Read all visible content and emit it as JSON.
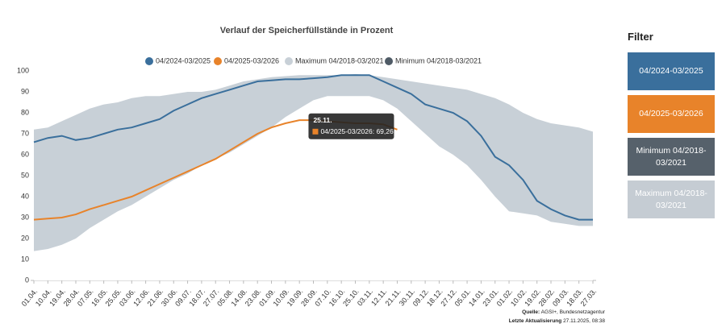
{
  "chart_data": {
    "type": "line",
    "title": "Verlauf der Speicherfüllstände in Prozent",
    "categories": [
      "01.04.",
      "10.04.",
      "19.04.",
      "28.04.",
      "07.05.",
      "16.05.",
      "25.05.",
      "03.06.",
      "12.06.",
      "21.06.",
      "30.06.",
      "09.07.",
      "18.07.",
      "27.07.",
      "05.08.",
      "14.08.",
      "23.08.",
      "01.09.",
      "10.09.",
      "19.09.",
      "28.09.",
      "07.10.",
      "16.10.",
      "25.10.",
      "03.11.",
      "12.11.",
      "21.11.",
      "30.11.",
      "09.12.",
      "18.12.",
      "27.12.",
      "05.01.",
      "14.01.",
      "23.01.",
      "01.02.",
      "10.02.",
      "19.02.",
      "28.02.",
      "09.03.",
      "18.03.",
      "27.03."
    ],
    "series": [
      {
        "name": "04/2024-03/2025",
        "color": "#3a6f9c",
        "values": [
          66,
          68,
          69,
          67,
          68,
          70,
          72,
          73,
          75,
          77,
          81,
          84,
          87,
          89,
          91,
          93,
          95,
          95.5,
          96,
          96,
          96.5,
          97,
          98,
          98,
          98,
          95,
          92,
          89,
          84,
          82,
          80,
          76,
          69,
          59,
          55,
          48,
          38,
          34,
          31,
          29,
          29
        ]
      },
      {
        "name": "04/2025-03/2026",
        "color": "#e8832a",
        "values": [
          29,
          29.5,
          30,
          31.5,
          34,
          36,
          38,
          40,
          43,
          46,
          49,
          52,
          55,
          58,
          62,
          66,
          70,
          73,
          75,
          76.5,
          76.5,
          76,
          75.5,
          75,
          75,
          74.5,
          72,
          null,
          null,
          null,
          null,
          null,
          null,
          null,
          null,
          null,
          null,
          null,
          null,
          null,
          null
        ]
      },
      {
        "name": "Maximum 04/2018-03/2021",
        "color": "#c8d0d7",
        "values": [
          72,
          73,
          76,
          79,
          82,
          84,
          85,
          87,
          88,
          88,
          89,
          90,
          90,
          91,
          93,
          95,
          96,
          97,
          97.5,
          98,
          98,
          98,
          98,
          98.5,
          98,
          97,
          96,
          95,
          94,
          93,
          92,
          91,
          89,
          87,
          84,
          80,
          77,
          75,
          74,
          73,
          71
        ]
      },
      {
        "name": "Minimum 04/2018-03/2021",
        "color": "#4f5b66",
        "values": [
          14,
          15,
          17,
          20,
          25,
          29,
          33,
          36,
          40,
          44,
          48,
          51,
          55,
          58,
          61,
          65,
          69,
          73,
          78,
          82,
          86,
          88,
          88,
          88,
          88,
          86,
          82,
          76,
          70,
          64,
          60,
          55,
          48,
          40,
          33,
          32,
          31,
          28,
          27,
          26,
          26
        ]
      }
    ],
    "ylim": [
      0,
      100
    ],
    "yticks": [
      0,
      10,
      20,
      30,
      40,
      50,
      60,
      70,
      80,
      90,
      100
    ],
    "grid": false,
    "tooltip": {
      "date": "25.11.",
      "text": "04/2025-03/2026: 69,26"
    }
  },
  "filter": {
    "title": "Filter",
    "buttons": [
      {
        "label": "04/2024-03/2025",
        "color": "#3a6f9c"
      },
      {
        "label": "04/2025-03/2026",
        "color": "#e8832a"
      },
      {
        "label": "Minimum 04/2018-03/2021",
        "color": "#56616b"
      },
      {
        "label": "Maximum 04/2018-03/2021",
        "color": "#c5ccd3"
      }
    ]
  },
  "footer": {
    "source_label": "Quelle:",
    "source": "AGSI+, Bundesnetzagentur",
    "update_label": "Letzte Aktualisierung",
    "update": "27.11.2025, 08:38"
  }
}
